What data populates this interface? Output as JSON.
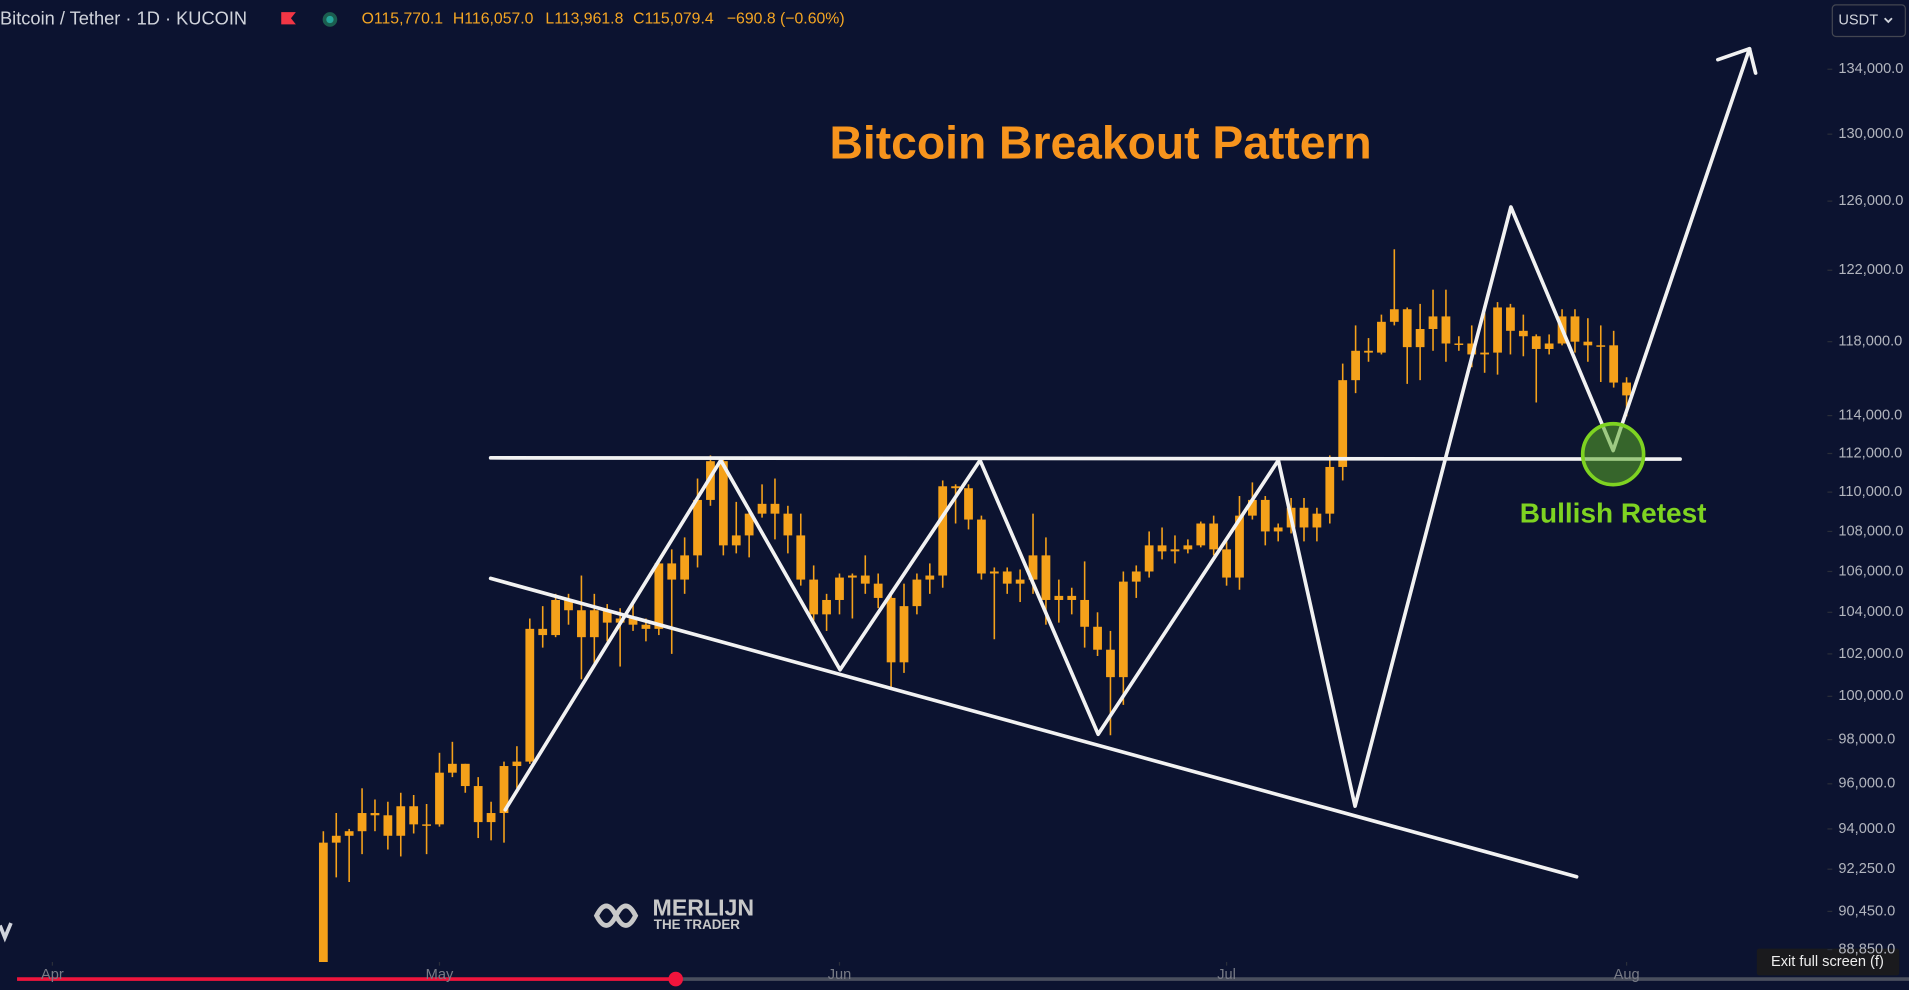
{
  "chart_data": {
    "type": "candlestick",
    "title": "Bitcoin Breakout Pattern",
    "symbol": "Bitcoin / Tether · 1D · KUCOIN",
    "ohlc_legend": [
      "O115,770.1",
      "H116,057.0",
      "L113,961.8",
      "C115,079.4",
      "−690.8 (−0.60%)"
    ],
    "annotations": [
      "Bullish Retest"
    ],
    "currency": "USDT",
    "color": "#f5a11a",
    "log_scale": true,
    "grid": false,
    "x": [
      21,
      22,
      23,
      24,
      25,
      26,
      27,
      28,
      29,
      30,
      31,
      32,
      33,
      34,
      35,
      36,
      37,
      38,
      39,
      40,
      41,
      42,
      43,
      44,
      45,
      46,
      47,
      48,
      49,
      50,
      51,
      52,
      53,
      54,
      55,
      56,
      57,
      58,
      59,
      60,
      61,
      62,
      63,
      64,
      65,
      66,
      67,
      68,
      69,
      70,
      71,
      72,
      73,
      74,
      75,
      76,
      77,
      78,
      79,
      80,
      81,
      82,
      83,
      84,
      85,
      86,
      87,
      88,
      89,
      90,
      91,
      92,
      93,
      94,
      95,
      96,
      97,
      98,
      99,
      100,
      101,
      102,
      103,
      104,
      105,
      106,
      107,
      108,
      109,
      110,
      111,
      112,
      113,
      114,
      115,
      116,
      117,
      118,
      119,
      120,
      121,
      122
    ],
    "open": [
      87500,
      93400,
      93700,
      93900,
      94700,
      94600,
      93700,
      95000,
      94200,
      94200,
      96500,
      96900,
      95900,
      94300,
      94700,
      96800,
      97000,
      103200,
      102900,
      104600,
      104100,
      102800,
      104100,
      103500,
      103700,
      103400,
      103200,
      106400,
      105600,
      106800,
      109600,
      111600,
      107300,
      107800,
      108900,
      109400,
      108900,
      107800,
      105600,
      103900,
      104600,
      105700,
      105800,
      105400,
      104700,
      101600,
      104300,
      105600,
      105800,
      110300,
      110200,
      108600,
      105900,
      106000,
      105400,
      105600,
      106800,
      104600,
      104800,
      104600,
      103300,
      102200,
      100900,
      105500,
      106000,
      107300,
      107000,
      107100,
      107300,
      108400,
      107100,
      105700,
      108800,
      109600,
      108000,
      108200,
      109200,
      108200,
      108900,
      111300,
      115900,
      117500,
      117400,
      119100,
      119800,
      117700,
      118700,
      119400,
      117900,
      117900,
      117300,
      117400,
      119900,
      118600,
      118300,
      117600,
      117900,
      119400,
      118000,
      117800,
      117800,
      115770.1
    ],
    "high": [
      93900,
      94700,
      94000,
      95800,
      95300,
      95200,
      95600,
      95500,
      95100,
      97400,
      97900,
      96900,
      96300,
      95200,
      97000,
      97700,
      103700,
      104300,
      104900,
      104900,
      105800,
      104900,
      104400,
      104200,
      104500,
      103700,
      106600,
      107100,
      107700,
      110700,
      111900,
      111800,
      109500,
      109200,
      110400,
      110700,
      109300,
      108900,
      106300,
      104900,
      105900,
      105900,
      106800,
      105900,
      105000,
      105400,
      105900,
      106400,
      110600,
      110400,
      110400,
      108800,
      106200,
      106200,
      106100,
      108900,
      107700,
      105600,
      105200,
      106500,
      104000,
      103100,
      106000,
      106300,
      108000,
      108200,
      107800,
      107600,
      108500,
      108800,
      107500,
      109800,
      110500,
      109800,
      108400,
      109700,
      109700,
      109200,
      111900,
      116800,
      118900,
      118200,
      119500,
      123200,
      119900,
      120100,
      120900,
      120900,
      118300,
      118900,
      119600,
      120200,
      120100,
      119500,
      118400,
      118400,
      119800,
      119800,
      119300,
      118900,
      118600,
      116057
    ],
    "low": [
      87100,
      91900,
      91700,
      92900,
      93900,
      93100,
      92800,
      93800,
      92900,
      94100,
      96300,
      95600,
      93600,
      93500,
      93400,
      95800,
      96900,
      102300,
      102800,
      103400,
      100800,
      101500,
      102600,
      101400,
      103100,
      102600,
      102900,
      102000,
      104900,
      106200,
      109300,
      106800,
      106900,
      106700,
      108700,
      107600,
      106900,
      105300,
      103600,
      103100,
      103900,
      103700,
      104900,
      104200,
      100400,
      101100,
      103900,
      104900,
      105200,
      108400,
      108100,
      105600,
      102700,
      104900,
      104500,
      104900,
      103400,
      103500,
      103900,
      102300,
      101900,
      98200,
      99600,
      104700,
      105700,
      106600,
      106400,
      106900,
      107200,
      106800,
      105300,
      105100,
      108600,
      107300,
      107500,
      107900,
      107500,
      107500,
      108400,
      110600,
      115200,
      116900,
      117300,
      118900,
      115700,
      115900,
      117500,
      116900,
      117500,
      116600,
      116300,
      116200,
      117300,
      117200,
      114700,
      117300,
      117800,
      117400,
      116900,
      115800,
      115500,
      113961.8
    ],
    "close": [
      93400,
      93700,
      93900,
      94700,
      94600,
      93700,
      95000,
      94200,
      94200,
      96500,
      96900,
      95900,
      94300,
      94700,
      96800,
      97000,
      103200,
      102900,
      104600,
      104100,
      102800,
      104100,
      103500,
      103700,
      103400,
      103200,
      106400,
      105600,
      106800,
      109600,
      111600,
      107300,
      107800,
      108900,
      109400,
      108900,
      107800,
      105600,
      103900,
      104600,
      105700,
      105800,
      105400,
      104700,
      101600,
      104300,
      105600,
      105800,
      110300,
      110200,
      108600,
      105900,
      106000,
      105400,
      105600,
      106800,
      104600,
      104800,
      104600,
      103300,
      102200,
      100900,
      105500,
      106000,
      107300,
      107000,
      107100,
      107300,
      108400,
      107100,
      105700,
      108800,
      109600,
      108000,
      108200,
      109200,
      108200,
      108900,
      111300,
      115900,
      117500,
      117400,
      119100,
      119800,
      117700,
      118700,
      119400,
      117900,
      117900,
      117300,
      117400,
      119900,
      118600,
      118300,
      117600,
      117900,
      119400,
      118000,
      117800,
      117800,
      115770.1,
      115079.4
    ],
    "xlim": [
      -4.06,
      137
    ],
    "xticks": [
      {
        "value": 0,
        "label": "Apr"
      },
      {
        "value": 30,
        "label": "May"
      },
      {
        "value": 61,
        "label": "Jun"
      },
      {
        "value": 91,
        "label": "Jul"
      },
      {
        "value": 122,
        "label": "Aug"
      }
    ],
    "ylim": [
      88340,
      138400
    ],
    "yticks": [
      {
        "value": 134000,
        "label": "134,000.0"
      },
      {
        "value": 130000,
        "label": "130,000.0"
      },
      {
        "value": 126000,
        "label": "126,000.0"
      },
      {
        "value": 122000,
        "label": "122,000.0"
      },
      {
        "value": 118000,
        "label": "118,000.0"
      },
      {
        "value": 114000,
        "label": "114,000.0"
      },
      {
        "value": 112000,
        "label": "112,000.0"
      },
      {
        "value": 110000,
        "label": "110,000.0"
      },
      {
        "value": 108000,
        "label": "108,000.0"
      },
      {
        "value": 106000,
        "label": "106,000.0"
      },
      {
        "value": 104000,
        "label": "104,000.0"
      },
      {
        "value": 102000,
        "label": "102,000.0"
      },
      {
        "value": 100000,
        "label": "100,000.0"
      },
      {
        "value": 98000,
        "label": "98,000.0"
      },
      {
        "value": 96000,
        "label": "96,000.0"
      },
      {
        "value": 94000,
        "label": "94,000.0"
      },
      {
        "value": 92250,
        "label": "92,250.0"
      },
      {
        "value": 90450,
        "label": "90,450.0"
      },
      {
        "value": 88850,
        "label": "88,850.0"
      }
    ]
  },
  "watermark": {
    "name": "MERLIJN",
    "tagline": "THE TRADER"
  },
  "player": {
    "exit_label": "Exit full screen (f)"
  }
}
